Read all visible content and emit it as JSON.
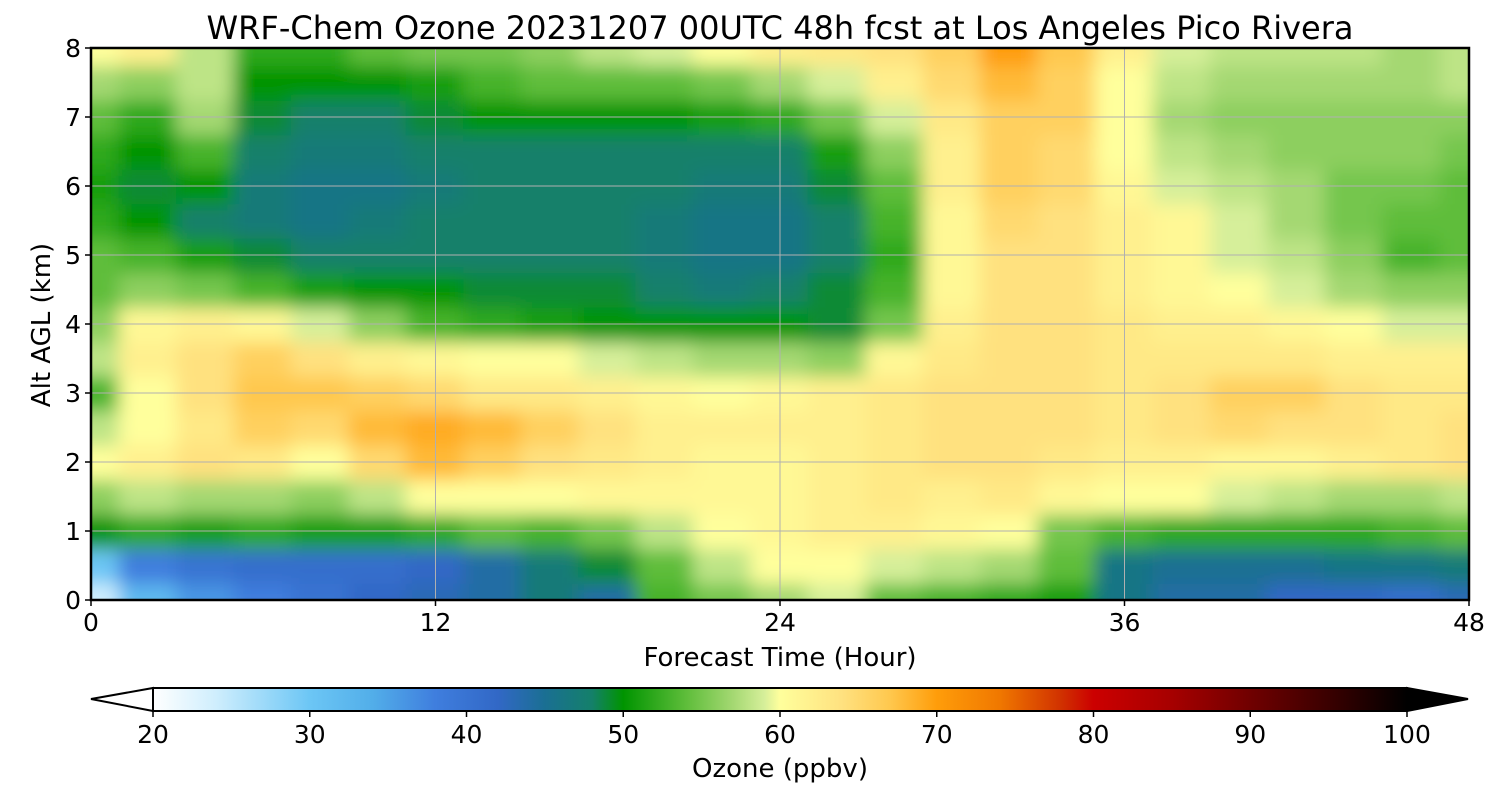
{
  "chart_data": {
    "type": "heatmap",
    "title": "WRF-Chem Ozone  20231207 00UTC 48h fcst at Los Angeles Pico Rivera",
    "xlabel": "Forecast Time (Hour)",
    "ylabel": "Alt AGL (km)",
    "xlim": [
      0,
      48
    ],
    "ylim": [
      0,
      8
    ],
    "x_ticks": [
      0,
      12,
      24,
      36,
      48
    ],
    "y_ticks": [
      0,
      1,
      2,
      3,
      4,
      5,
      6,
      7,
      8
    ],
    "grid": true,
    "colorbar": {
      "label": "Ozone  (ppbv)",
      "range": [
        20,
        100
      ],
      "ticks": [
        20,
        30,
        40,
        50,
        60,
        70,
        80,
        90,
        100
      ],
      "extend": "both",
      "stops": [
        {
          "v": 20,
          "color": "#ffffff"
        },
        {
          "v": 24,
          "color": "#cfeefd"
        },
        {
          "v": 30,
          "color": "#6cc6f5"
        },
        {
          "v": 34,
          "color": "#52aee9"
        },
        {
          "v": 38,
          "color": "#3f7ede"
        },
        {
          "v": 42,
          "color": "#3268c6"
        },
        {
          "v": 45,
          "color": "#1a6f93"
        },
        {
          "v": 48,
          "color": "#14806a"
        },
        {
          "v": 50,
          "color": "#009400"
        },
        {
          "v": 54,
          "color": "#5ebd3a"
        },
        {
          "v": 57,
          "color": "#a4d872"
        },
        {
          "v": 59,
          "color": "#d6ef9a"
        },
        {
          "v": 60,
          "color": "#ffff9c"
        },
        {
          "v": 64,
          "color": "#ffe17f"
        },
        {
          "v": 67,
          "color": "#ffc84e"
        },
        {
          "v": 70,
          "color": "#ff9d0a"
        },
        {
          "v": 74,
          "color": "#f07800"
        },
        {
          "v": 78,
          "color": "#d03000"
        },
        {
          "v": 80,
          "color": "#cc0000"
        },
        {
          "v": 85,
          "color": "#a60000"
        },
        {
          "v": 90,
          "color": "#700000"
        },
        {
          "v": 95,
          "color": "#3a0000"
        },
        {
          "v": 100,
          "color": "#000000"
        }
      ]
    },
    "x": [
      0,
      2,
      4,
      6,
      8,
      10,
      12,
      14,
      16,
      18,
      20,
      22,
      24,
      26,
      28,
      30,
      32,
      34,
      36,
      38,
      40,
      42,
      44,
      46,
      48
    ],
    "y": [
      0,
      0.5,
      1,
      1.5,
      2,
      2.5,
      3,
      3.5,
      4,
      4.5,
      5,
      5.5,
      6,
      6.5,
      7,
      7.5,
      8
    ],
    "z": [
      [
        24,
        32,
        36,
        38,
        40,
        42,
        43,
        44,
        47,
        44,
        53,
        55,
        57,
        59,
        54,
        53,
        52,
        51,
        46,
        44,
        44,
        42,
        42,
        41,
        43
      ],
      [
        30,
        38,
        40,
        41,
        41,
        41,
        42,
        44,
        47,
        49,
        54,
        58,
        60,
        60,
        59,
        58,
        57,
        54,
        46,
        45,
        45,
        45,
        46,
        46,
        47
      ],
      [
        50,
        52,
        51,
        52,
        51,
        51,
        52,
        54,
        53,
        55,
        58,
        60,
        61,
        62,
        62,
        61,
        60,
        55,
        53,
        52,
        52,
        52,
        52,
        53,
        54
      ],
      [
        56,
        58,
        57,
        57,
        56,
        58,
        60,
        60,
        60,
        61,
        61,
        61,
        61,
        62,
        63,
        62,
        63,
        61,
        60,
        60,
        59,
        58,
        57,
        57,
        58
      ],
      [
        60,
        62,
        64,
        63,
        60,
        65,
        68,
        66,
        64,
        63,
        62,
        61,
        61,
        62,
        63,
        64,
        64,
        63,
        62,
        62,
        61,
        61,
        62,
        63,
        64
      ],
      [
        58,
        60,
        63,
        66,
        65,
        68,
        69,
        68,
        66,
        64,
        62,
        62,
        62,
        62,
        63,
        64,
        64,
        64,
        63,
        64,
        65,
        64,
        64,
        63,
        64
      ],
      [
        53,
        60,
        64,
        67,
        67,
        66,
        65,
        63,
        63,
        62,
        61,
        60,
        61,
        62,
        63,
        64,
        64,
        64,
        63,
        64,
        66,
        66,
        64,
        63,
        63
      ],
      [
        58,
        62,
        64,
        66,
        64,
        62,
        61,
        60,
        60,
        59,
        58,
        57,
        57,
        56,
        61,
        63,
        64,
        64,
        63,
        63,
        63,
        63,
        62,
        62,
        62
      ],
      [
        56,
        61,
        62,
        61,
        59,
        56,
        53,
        52,
        51,
        50,
        50,
        50,
        50,
        49,
        55,
        62,
        64,
        64,
        63,
        62,
        62,
        61,
        60,
        59,
        59
      ],
      [
        54,
        56,
        55,
        53,
        51,
        50,
        50,
        49,
        49,
        49,
        48,
        47,
        48,
        49,
        53,
        61,
        64,
        64,
        62,
        61,
        60,
        59,
        57,
        56,
        56
      ],
      [
        54,
        53,
        51,
        49,
        48,
        48,
        48,
        48,
        48,
        48,
        47,
        46,
        46,
        48,
        52,
        61,
        64,
        64,
        62,
        61,
        59,
        58,
        56,
        53,
        54
      ],
      [
        52,
        50,
        48,
        47,
        46,
        47,
        48,
        48,
        48,
        48,
        47,
        46,
        46,
        48,
        53,
        61,
        65,
        64,
        62,
        61,
        59,
        57,
        55,
        54,
        54
      ],
      [
        51,
        49,
        50,
        47,
        46,
        46,
        47,
        48,
        48,
        48,
        48,
        47,
        47,
        49,
        54,
        62,
        66,
        65,
        61,
        59,
        58,
        57,
        55,
        55,
        54
      ],
      [
        52,
        50,
        53,
        48,
        47,
        47,
        48,
        48,
        48,
        48,
        48,
        48,
        48,
        51,
        56,
        62,
        66,
        65,
        60,
        58,
        57,
        56,
        56,
        56,
        55
      ],
      [
        54,
        52,
        57,
        49,
        48,
        48,
        49,
        50,
        50,
        50,
        50,
        51,
        52,
        55,
        59,
        63,
        66,
        66,
        60,
        57,
        56,
        56,
        56,
        56,
        56
      ],
      [
        57,
        56,
        58,
        50,
        50,
        50,
        51,
        53,
        54,
        54,
        54,
        55,
        57,
        59,
        62,
        65,
        68,
        66,
        60,
        58,
        57,
        57,
        57,
        57,
        58
      ],
      [
        60,
        62,
        58,
        52,
        52,
        54,
        55,
        55,
        56,
        58,
        59,
        60,
        62,
        63,
        64,
        66,
        70,
        67,
        62,
        59,
        58,
        58,
        58,
        57,
        58
      ]
    ]
  }
}
